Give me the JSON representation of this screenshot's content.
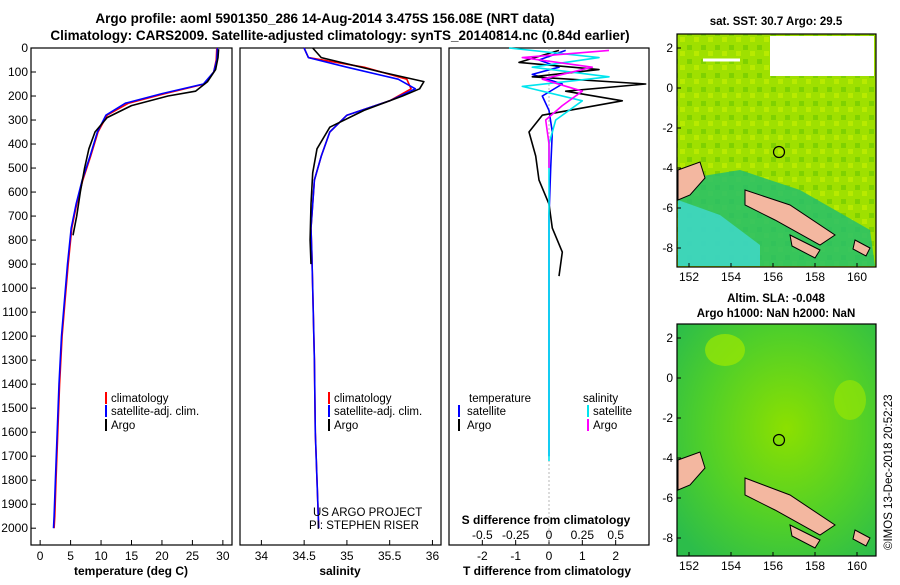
{
  "header": {
    "line1": "Argo profile: aoml 5901350_286 14-Aug-2014 3.475S 156.08E (NRT data)",
    "line2": "Climatology: CARS2009. Satellite-adjusted climatology: synTS_20140814.nc (0.84d earlier)"
  },
  "colors": {
    "argo": "#000000",
    "climatology": "#ff0000",
    "satellite": "#0000ff",
    "sat_salinity": "#00e5ee",
    "argo_salinity_diff": "#ff00ff"
  },
  "chart_data": [
    {
      "type": "line",
      "xlabel": "temperature (deg C)",
      "ylabel": "",
      "xlim": [
        -1.5,
        31.5
      ],
      "ylim": [
        2070,
        0
      ],
      "xticks": [
        0,
        5,
        10,
        15,
        20,
        25,
        30
      ],
      "yticks": [
        0,
        100,
        200,
        300,
        400,
        500,
        600,
        700,
        800,
        900,
        1000,
        1100,
        1200,
        1300,
        1400,
        1500,
        1600,
        1700,
        1800,
        1900,
        2000
      ],
      "legend": [
        "climatology",
        "satellite-adj. clim.",
        "Argo"
      ],
      "series": [
        {
          "name": "climatology",
          "color": "#ff0000",
          "x": [
            29.0,
            28.9,
            28.5,
            27.0,
            20.5,
            14.5,
            11.0,
            9.5,
            8.3,
            7.0,
            6.0,
            5.2,
            4.6,
            4.1,
            3.6,
            3.2,
            2.9,
            2.6,
            2.4,
            2.3
          ],
          "y": [
            0,
            50,
            100,
            150,
            190,
            230,
            280,
            350,
            450,
            550,
            650,
            750,
            900,
            1050,
            1200,
            1400,
            1600,
            1800,
            1950,
            2000
          ]
        },
        {
          "name": "satellite-adj. clim.",
          "color": "#0000ff",
          "x": [
            29.1,
            29.0,
            28.5,
            26.8,
            20.0,
            14.0,
            10.8,
            9.4,
            8.2,
            6.9,
            5.9,
            5.1,
            4.5,
            4.0,
            3.5,
            3.1,
            2.8,
            2.5,
            2.3,
            2.2
          ],
          "y": [
            0,
            50,
            100,
            150,
            190,
            230,
            280,
            350,
            450,
            550,
            650,
            750,
            900,
            1050,
            1200,
            1400,
            1600,
            1800,
            1950,
            2000
          ]
        },
        {
          "name": "Argo",
          "color": "#000000",
          "x": [
            29.3,
            29.2,
            28.8,
            27.5,
            25.5,
            21.0,
            15.0,
            11.0,
            9.0,
            8.0,
            7.3,
            6.6,
            6.0,
            5.4
          ],
          "y": [
            5,
            40,
            90,
            140,
            180,
            200,
            240,
            290,
            350,
            420,
            500,
            600,
            700,
            780
          ]
        }
      ]
    },
    {
      "type": "line",
      "xlabel": "salinity",
      "xlim": [
        33.75,
        36.1
      ],
      "ylim": [
        2070,
        0
      ],
      "xticks": [
        34,
        34.5,
        35,
        35.5,
        36
      ],
      "legend": [
        "climatology",
        "satellite-adj. clim.",
        "Argo"
      ],
      "annotations": [
        "US ARGO PROJECT",
        "PI: STEPHEN RISER"
      ],
      "series": [
        {
          "name": "climatology",
          "color": "#ff0000",
          "x": [
            34.5,
            34.55,
            35.2,
            35.7,
            35.75,
            35.5,
            35.0,
            34.8,
            34.7,
            34.62,
            34.6,
            34.58,
            34.59,
            34.6,
            34.62,
            34.63,
            34.65,
            34.67
          ],
          "y": [
            0,
            40,
            80,
            130,
            170,
            220,
            280,
            350,
            450,
            550,
            650,
            750,
            850,
            1000,
            1300,
            1600,
            1800,
            2000
          ]
        },
        {
          "name": "satellite-adj. clim.",
          "color": "#0000ff",
          "x": [
            34.5,
            34.55,
            35.0,
            35.6,
            35.8,
            35.5,
            35.0,
            34.8,
            34.7,
            34.62,
            34.6,
            34.58,
            34.59,
            34.6,
            34.62,
            34.63,
            34.65,
            34.67
          ],
          "y": [
            0,
            40,
            80,
            130,
            170,
            220,
            280,
            350,
            450,
            550,
            650,
            750,
            850,
            1000,
            1300,
            1600,
            1800,
            2000
          ]
        },
        {
          "name": "Argo",
          "color": "#000000",
          "x": [
            34.6,
            34.7,
            35.4,
            35.9,
            35.85,
            35.65,
            35.2,
            34.8,
            34.65,
            34.6,
            34.58,
            34.57,
            34.58
          ],
          "y": [
            0,
            40,
            100,
            140,
            170,
            200,
            260,
            330,
            420,
            520,
            650,
            800,
            900
          ]
        }
      ]
    },
    {
      "type": "line",
      "xlabel": "T difference from climatology",
      "title": "S difference from climatology",
      "xlim": [
        -3,
        3
      ],
      "ylim": [
        2070,
        0
      ],
      "xticks": [
        -2,
        -1,
        0,
        1,
        2
      ],
      "xticks_top": [
        "-0.5",
        "-0.25",
        "0",
        "0.25",
        "0.5"
      ],
      "legend_left_title": "temperature",
      "legend_right_title": "salinity",
      "legend": [
        "satellite",
        "Argo",
        "satellite",
        "Argo"
      ],
      "series": [
        {
          "name": "satellite",
          "color": "#0000ff",
          "x": [
            0.5,
            -0.3,
            0.3,
            -0.5,
            0.4,
            -0.2,
            0.0,
            0.1,
            0.05,
            0.0,
            0.0,
            0.0,
            0.0
          ],
          "y": [
            10,
            50,
            80,
            110,
            150,
            200,
            260,
            350,
            500,
            700,
            1000,
            1500,
            1700
          ]
        },
        {
          "name": "Argo",
          "color": "#000000",
          "x": [
            0.3,
            -0.9,
            1.5,
            -0.5,
            2.9,
            0.5,
            2.2,
            -0.2,
            -0.6,
            -0.4,
            -0.3,
            0.0,
            0.1,
            0.4,
            0.3
          ],
          "y": [
            10,
            60,
            90,
            120,
            150,
            180,
            220,
            280,
            350,
            450,
            550,
            650,
            750,
            850,
            950
          ]
        },
        {
          "name": "satellite",
          "color": "#00e5ee",
          "x": [
            -1.2,
            1.5,
            -0.5,
            1.8,
            -0.8,
            1.0,
            0.2,
            0.0,
            0.0,
            0.0,
            0.0,
            0.0
          ],
          "y": [
            0,
            40,
            80,
            120,
            160,
            220,
            300,
            400,
            600,
            900,
            1300,
            1720
          ]
        },
        {
          "name": "Argo",
          "color": "#ff00ff",
          "x": [
            1.8,
            -0.8,
            1.3,
            -0.2,
            1.0,
            0.4,
            -0.1,
            0.0,
            0.0
          ],
          "y": [
            10,
            40,
            80,
            130,
            180,
            240,
            300,
            400,
            500
          ]
        }
      ]
    }
  ],
  "maps": {
    "top": {
      "title": "sat. SST: 30.7 Argo: 29.5",
      "xticks": [
        "152",
        "154",
        "156",
        "158",
        "160"
      ],
      "yticks": [
        "2",
        "0",
        "-2",
        "-4",
        "-6",
        "-8"
      ]
    },
    "bottom": {
      "title1": "Altim. SLA: -0.048",
      "title2": "Argo h1000: NaN h2000: NaN",
      "xticks": [
        "152",
        "154",
        "156",
        "158",
        "160"
      ],
      "yticks": [
        "2",
        "0",
        "-2",
        "-4",
        "-6",
        "-8"
      ]
    }
  },
  "credit": "©IMOS 13-Dec-2018 20:52:23"
}
